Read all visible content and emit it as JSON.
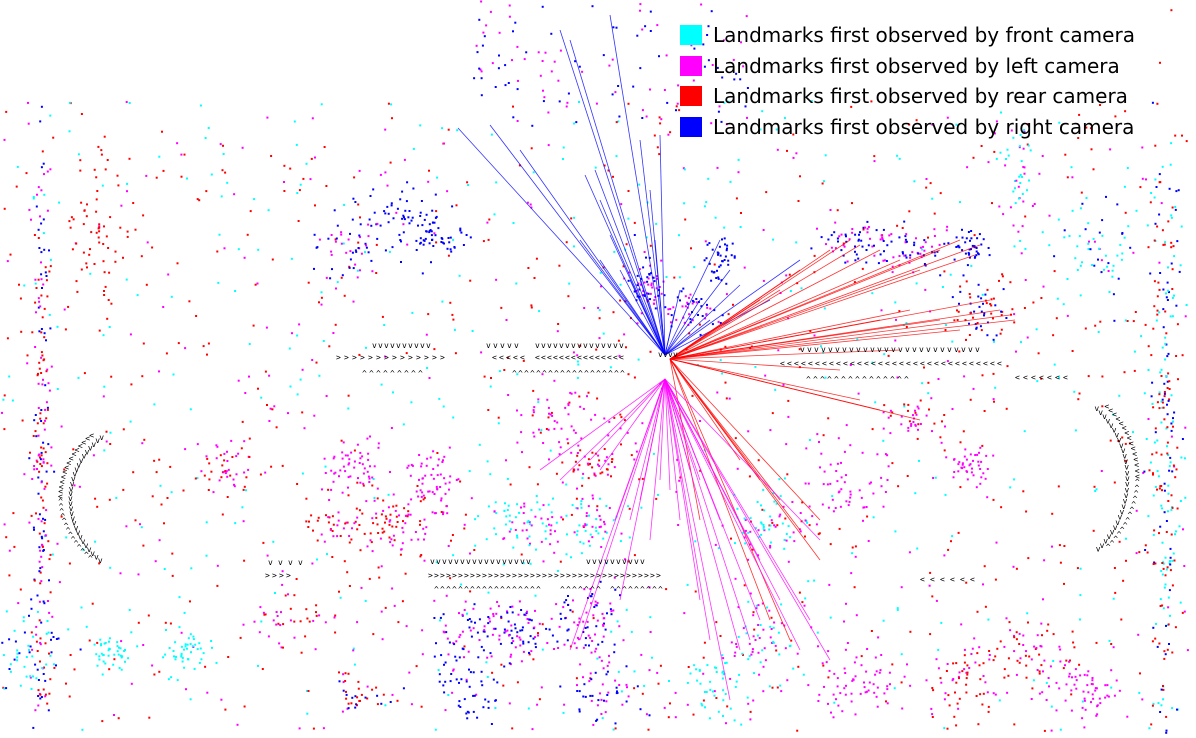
{
  "legend": [
    {
      "label": "Landmarks first observed by front camera",
      "color": "#00ffff"
    },
    {
      "label": "Landmarks first observed by left camera",
      "color": "#ff00ff"
    },
    {
      "label": "Landmarks first observed by rear camera",
      "color": "#ff0000"
    },
    {
      "label": "Landmarks first observed by right camera",
      "color": "#0000ff"
    }
  ],
  "colors": {
    "front": "#00ffff",
    "left": "#ff00ff",
    "rear": "#ff0000",
    "right": "#0000ff",
    "trajectory": "#000000"
  }
}
